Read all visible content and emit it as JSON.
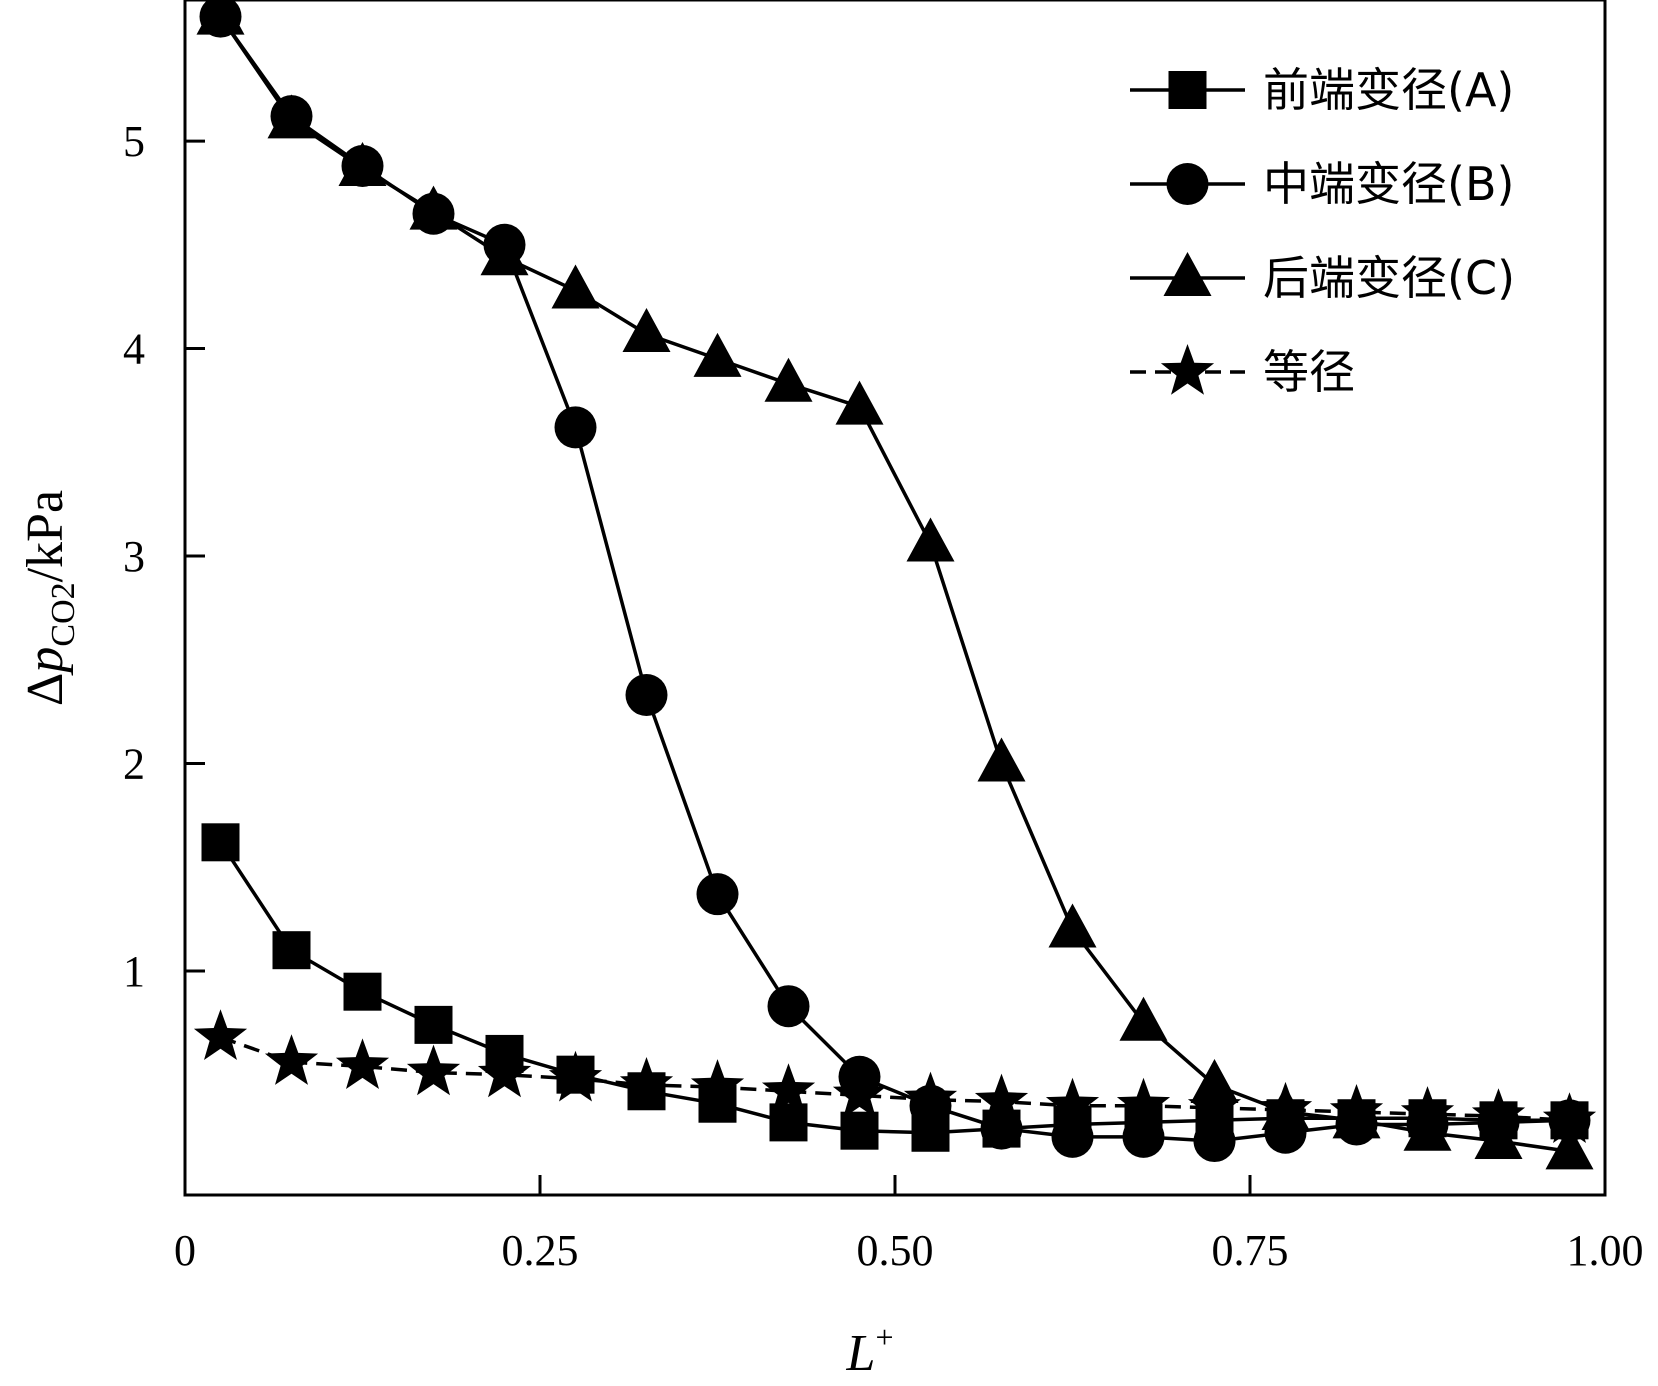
{
  "chart_data": {
    "type": "line",
    "xlabel_main": "L",
    "xlabel_sup": "+",
    "ylabel_delta": "Δ",
    "ylabel_p": "p",
    "ylabel_sub": "CO2",
    "ylabel_unit": "/kPa",
    "xlim": [
      0,
      1.0
    ],
    "ylim": [
      -0.08,
      5.68
    ],
    "xticks": [
      {
        "value": 0,
        "label": "0"
      },
      {
        "value": 0.25,
        "label": "0.25"
      },
      {
        "value": 0.5,
        "label": "0.50"
      },
      {
        "value": 0.75,
        "label": "0.75"
      },
      {
        "value": 1.0,
        "label": "1.00"
      }
    ],
    "yticks": [
      {
        "value": 1,
        "label": "1"
      },
      {
        "value": 2,
        "label": "2"
      },
      {
        "value": 3,
        "label": "3"
      },
      {
        "value": 4,
        "label": "4"
      },
      {
        "value": 5,
        "label": "5"
      }
    ],
    "x": [
      0.025,
      0.075,
      0.125,
      0.175,
      0.225,
      0.275,
      0.325,
      0.375,
      0.425,
      0.475,
      0.525,
      0.575,
      0.625,
      0.675,
      0.725,
      0.775,
      0.825,
      0.875,
      0.925,
      0.975
    ],
    "legend_position": "top-right",
    "series": [
      {
        "name": "前端变径(A)",
        "marker": "square",
        "dash": "solid",
        "values": [
          1.62,
          1.1,
          0.9,
          0.74,
          0.6,
          0.5,
          0.42,
          0.36,
          0.27,
          0.23,
          0.22,
          0.24,
          0.26,
          0.27,
          0.28,
          0.29,
          0.29,
          0.29,
          0.28,
          0.28
        ]
      },
      {
        "name": "中端变径(B)",
        "marker": "circle",
        "dash": "solid",
        "values": [
          5.6,
          5.12,
          4.88,
          4.65,
          4.5,
          3.62,
          2.33,
          1.37,
          0.83,
          0.49,
          0.35,
          0.24,
          0.2,
          0.2,
          0.18,
          0.22,
          0.26,
          0.26,
          0.27,
          0.28
        ]
      },
      {
        "name": "后端变径(C)",
        "marker": "triangle",
        "dash": "solid",
        "values": [
          5.6,
          5.1,
          4.87,
          4.66,
          4.44,
          4.28,
          4.07,
          3.95,
          3.83,
          3.72,
          3.06,
          2.0,
          1.2,
          0.75,
          0.45,
          0.32,
          0.28,
          0.22,
          0.18,
          0.13
        ]
      },
      {
        "name": "等径",
        "marker": "star",
        "dash": "dashed",
        "values": [
          0.68,
          0.56,
          0.54,
          0.51,
          0.5,
          0.48,
          0.45,
          0.44,
          0.42,
          0.4,
          0.38,
          0.37,
          0.35,
          0.35,
          0.34,
          0.33,
          0.32,
          0.31,
          0.3,
          0.28
        ]
      }
    ]
  }
}
